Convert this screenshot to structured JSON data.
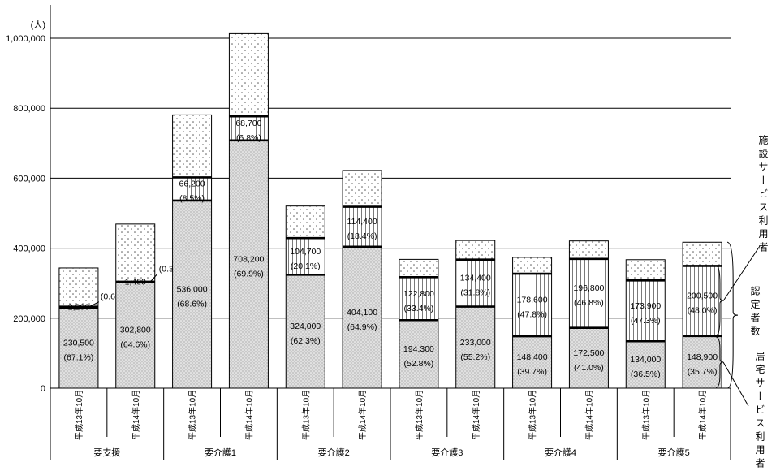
{
  "chart_data": {
    "type": "bar",
    "variant": "stacked",
    "unit_label": "(人)",
    "y_axis": {
      "min": 0,
      "max": 1000000,
      "tick_step": 200000,
      "tick_labels": [
        "0",
        "200,000",
        "400,000",
        "600,000",
        "800,000",
        "1,000,000"
      ],
      "grid": true
    },
    "groups": [
      "要支援",
      "要介護1",
      "要介護2",
      "要介護3",
      "要介護4",
      "要介護5"
    ],
    "periods": [
      "平成13年10月",
      "平成14年10月"
    ],
    "legend": {
      "facility": "施設サービス利用者",
      "total": "認定者数",
      "home": "居宅サービス利用者"
    },
    "bars": [
      {
        "group": "要支援",
        "period": "平成13年10月",
        "home_value": 230500,
        "home_label": "230,500",
        "home_pct": "(67.1%)",
        "fac_value": 2200,
        "fac_label": "2,200",
        "fac_pct": "(0.6%)",
        "fac_callout": true,
        "total": 343500
      },
      {
        "group": "要支援",
        "period": "平成14年10月",
        "home_value": 302800,
        "home_label": "302,800",
        "home_pct": "(64.6%)",
        "fac_value": 1400,
        "fac_label": "1,400",
        "fac_pct": "(0.3%)",
        "fac_callout": true,
        "total": 469000
      },
      {
        "group": "要介護1",
        "period": "平成13年10月",
        "home_value": 536000,
        "home_label": "536,000",
        "home_pct": "(68.6%)",
        "fac_value": 66200,
        "fac_label": "66,200",
        "fac_pct": "(8.5%)",
        "fac_callout": false,
        "total": 781000
      },
      {
        "group": "要介護1",
        "period": "平成14年10月",
        "home_value": 708200,
        "home_label": "708,200",
        "home_pct": "(69.9%)",
        "fac_value": 68700,
        "fac_label": "68,700",
        "fac_pct": "(6.8%)",
        "fac_callout": false,
        "total": 1013000
      },
      {
        "group": "要介護2",
        "period": "平成13年10月",
        "home_value": 324000,
        "home_label": "324,000",
        "home_pct": "(62.3%)",
        "fac_value": 104700,
        "fac_label": "104,700",
        "fac_pct": "(20.1%)",
        "fac_callout": false,
        "total": 520500
      },
      {
        "group": "要介護2",
        "period": "平成14年10月",
        "home_value": 404100,
        "home_label": "404,100",
        "home_pct": "(64.9%)",
        "fac_value": 114400,
        "fac_label": "114,400",
        "fac_pct": "(18.4%)",
        "fac_callout": false,
        "total": 622000
      },
      {
        "group": "要介護3",
        "period": "平成13年10月",
        "home_value": 194300,
        "home_label": "194,300",
        "home_pct": "(52.8%)",
        "fac_value": 122800,
        "fac_label": "122,800",
        "fac_pct": "(33.4%)",
        "fac_callout": false,
        "total": 368000
      },
      {
        "group": "要介護3",
        "period": "平成14年10月",
        "home_value": 233000,
        "home_label": "233,000",
        "home_pct": "(55.2%)",
        "fac_value": 134400,
        "fac_label": "134,400",
        "fac_pct": "(31.8%)",
        "fac_callout": false,
        "total": 422000
      },
      {
        "group": "要介護4",
        "period": "平成13年10月",
        "home_value": 148400,
        "home_label": "148,400",
        "home_pct": "(39.7%)",
        "fac_value": 178600,
        "fac_label": "178,600",
        "fac_pct": "(47.8%)",
        "fac_callout": false,
        "total": 373800
      },
      {
        "group": "要介護4",
        "period": "平成14年10月",
        "home_value": 172500,
        "home_label": "172,500",
        "home_pct": "(41.0%)",
        "fac_value": 196800,
        "fac_label": "196,800",
        "fac_pct": "(46.8%)",
        "fac_callout": false,
        "total": 420700
      },
      {
        "group": "要介護5",
        "period": "平成13年10月",
        "home_value": 134000,
        "home_label": "134,000",
        "home_pct": "(36.5%)",
        "fac_value": 173900,
        "fac_label": "173,900",
        "fac_pct": "(47.3%)",
        "fac_callout": false,
        "total": 367100
      },
      {
        "group": "要介護5",
        "period": "平成14年10月",
        "home_value": 148900,
        "home_label": "148,900",
        "home_pct": "(35.7%)",
        "fac_value": 200500,
        "fac_label": "200,500",
        "fac_pct": "(48.0%)",
        "fac_callout": false,
        "total": 417000
      }
    ]
  }
}
